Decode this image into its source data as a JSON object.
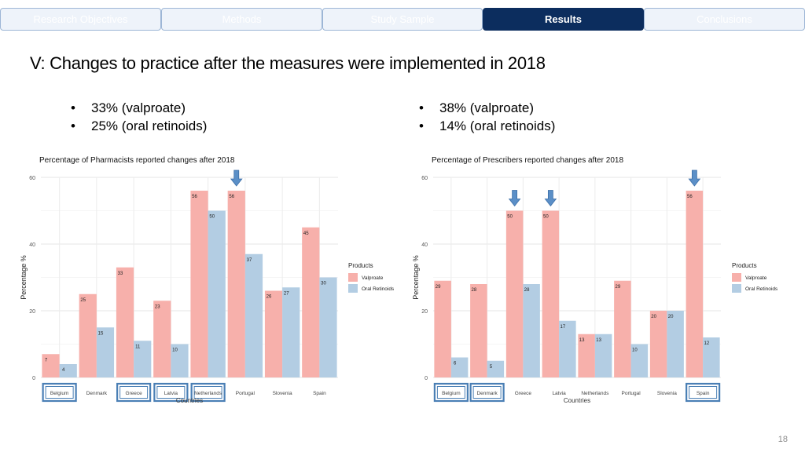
{
  "nav": {
    "tabs": [
      {
        "label": "Research Objectives",
        "active": false
      },
      {
        "label": "Methods",
        "active": false
      },
      {
        "label": "Study Sample",
        "active": false
      },
      {
        "label": "Results",
        "active": true
      },
      {
        "label": "Conclusions",
        "active": false
      }
    ]
  },
  "slide": {
    "title": "V: Changes to practice after the measures were implemented in 2018",
    "left_bullets": [
      "33% (valproate)",
      "25% (oral retinoids)"
    ],
    "right_bullets": [
      "38% (valproate)",
      "14% (oral retinoids)"
    ],
    "page_number": "18"
  },
  "colors": {
    "valproate": "#f7b0ab",
    "oral_retinoids": "#b3cde3",
    "highlight_box": "#4a7fb5",
    "arrow": "#5b8fc7",
    "active_tab": "#0c2d5e"
  },
  "chart_data": [
    {
      "type": "bar",
      "title": "Percentage of Pharmacists reported changes after 2018",
      "xlabel": "Countries",
      "ylabel": "Percentage %",
      "ylim": [
        0,
        60
      ],
      "yticks": [
        0,
        20,
        40,
        60
      ],
      "grid": true,
      "legend": {
        "title": "Products",
        "position": "right"
      },
      "categories": [
        "Belgium",
        "Denmark",
        "Greece",
        "Latvia",
        "Netherlands",
        "Portugal",
        "Slovenia",
        "Spain"
      ],
      "series": [
        {
          "name": "Valproate",
          "values": [
            7,
            25,
            33,
            23,
            56,
            56,
            26,
            45
          ]
        },
        {
          "name": "Oral Retinoids",
          "values": [
            4,
            15,
            11,
            10,
            50,
            37,
            27,
            30
          ]
        }
      ],
      "highlighted_categories": [
        "Belgium",
        "Greece",
        "Latvia",
        "Netherlands"
      ],
      "arrow_categories": [
        "Portugal"
      ]
    },
    {
      "type": "bar",
      "title": "Percentage of Prescribers reported changes after 2018",
      "xlabel": "Countries",
      "ylabel": "Percentage %",
      "ylim": [
        0,
        60
      ],
      "yticks": [
        0,
        20,
        40,
        60
      ],
      "grid": true,
      "legend": {
        "title": "Products",
        "position": "right"
      },
      "categories": [
        "Belgium",
        "Denmark",
        "Greece",
        "Latvia",
        "Netherlands",
        "Portugal",
        "Slovenia",
        "Spain"
      ],
      "series": [
        {
          "name": "Valproate",
          "values": [
            29,
            28,
            50,
            50,
            13,
            29,
            20,
            56
          ]
        },
        {
          "name": "Oral Retinoids",
          "values": [
            6,
            5,
            28,
            17,
            13,
            10,
            20,
            12
          ]
        }
      ],
      "highlighted_categories": [
        "Belgium",
        "Denmark",
        "Spain"
      ],
      "arrow_categories": [
        "Greece",
        "Latvia",
        "Spain"
      ]
    }
  ]
}
